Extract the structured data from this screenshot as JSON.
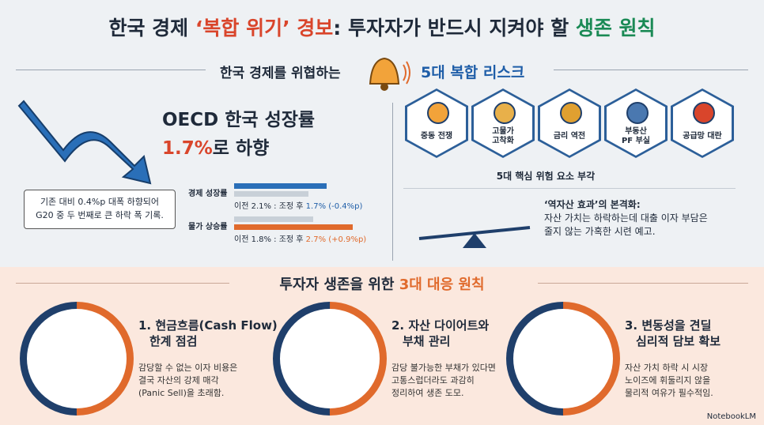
{
  "title": {
    "parts": [
      "한국 경제 ",
      "‘복합 위기’ 경보",
      ": 투자자가 반드시 지켜야 할 ",
      "생존 원칙"
    ]
  },
  "risk_header": {
    "left": "한국 경제를 위협하는",
    "right": "5대 복합 리스크"
  },
  "oecd": {
    "title": "OECD 한국 성장률",
    "highlight": "1.7%",
    "suffix": "로 하향",
    "note": [
      "기존 대비 0.4%p 대폭 하향되어",
      "G20 중 두 번째로 큰 하락 폭 기록."
    ],
    "rows": [
      {
        "label": "경제 성장률",
        "before": 2.1,
        "after": 1.7,
        "text": "이전 2.1% : 조정 후 ",
        "change": "1.7% (-0.4%p)"
      },
      {
        "label": "물가 상승률",
        "before": 1.8,
        "after": 2.7,
        "text": "이전 1.8% : 조정 후 ",
        "change": "2.7% (+0.9%p)"
      }
    ]
  },
  "risks": {
    "items": [
      [
        "중동 전쟁"
      ],
      [
        "고물가",
        "고착화"
      ],
      [
        "금리 역전"
      ],
      [
        "부동산",
        "PF 부실"
      ],
      [
        "공급망 대란"
      ]
    ],
    "caption": "5대 핵심 위험 요소 부각"
  },
  "reverse": {
    "title": "‘역자산 효과’의 본격화:",
    "lines": [
      "자산 가치는 하락하는데 대출 이자 부담은",
      "줄지 않는 가혹한 시련 예고."
    ]
  },
  "principles": {
    "heading": [
      "투자자 생존을 위한 ",
      "3대 대응 원칙"
    ],
    "items": [
      {
        "title": [
          "1. 현금흐름(Cash Flow)",
          "한계 점검"
        ],
        "body": [
          "감당할 수 없는 이자 비용은",
          "결국 자산의 강제 매각",
          "(Panic Sell)을 초래함."
        ]
      },
      {
        "title": [
          "2. 자산 다이어트와",
          "부채 관리"
        ],
        "body": [
          "감당 불가능한 부채가 있다면",
          "고통스럽더라도 과감히",
          "정리하여 생존 도모."
        ]
      },
      {
        "title": [
          "3. 변동성을 견딜",
          "심리적 담보 확보"
        ],
        "body": [
          "자산 가치 하락 시 시장",
          "노이즈에 휘둘리지 않을",
          "물리적 여유가 필수적임."
        ]
      }
    ]
  },
  "footer": "NotebookLM"
}
